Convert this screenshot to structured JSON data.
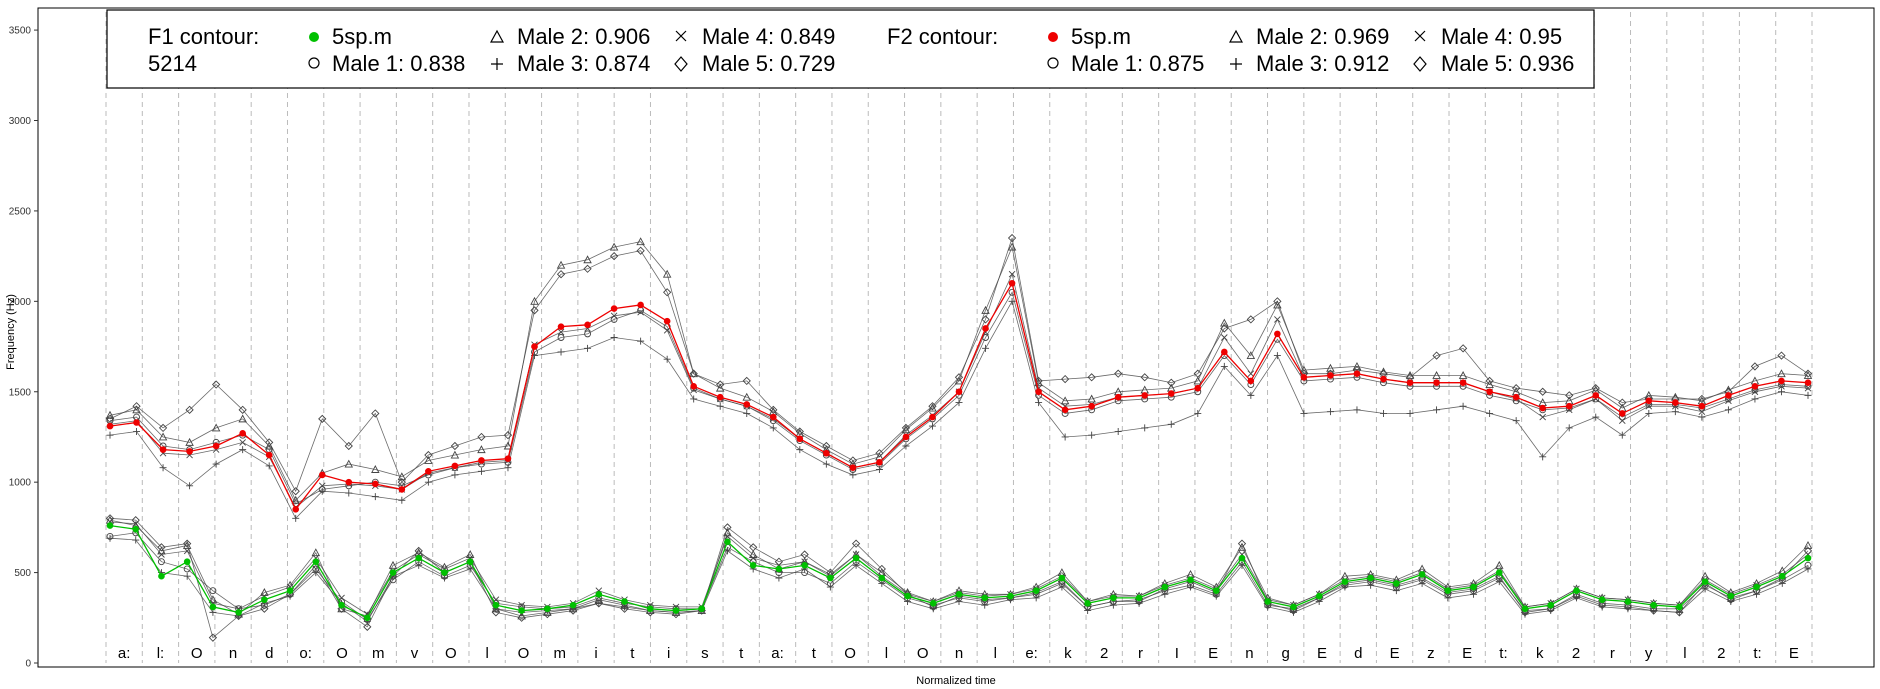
{
  "chart_data": {
    "type": "line",
    "title": "",
    "xlabel": "Normalized time",
    "ylabel": "Frequency (Hz)",
    "ylim": [
      0,
      3600
    ],
    "yticks": [
      0,
      500,
      1000,
      1500,
      2000,
      2500,
      3000,
      3500
    ],
    "segments": [
      "a:",
      "l:",
      "O",
      "n",
      "d",
      "o:",
      "O",
      "m",
      "v",
      "O",
      "l",
      "O",
      "m",
      "i",
      "t",
      "i",
      "s",
      "t",
      "a:",
      "t",
      "O",
      "l",
      "O",
      "n",
      "l",
      "e:",
      "k",
      "2",
      "r",
      "I",
      "E",
      "n",
      "g",
      "E",
      "d",
      "E",
      "z",
      "E",
      "t:",
      "k",
      "2",
      "r",
      "y",
      "l",
      "2",
      "t:",
      "E"
    ],
    "grid": "vertical dashed segment boundaries",
    "legend": {
      "position": "top-left inside plot",
      "f1_title": "F1 contour:",
      "f1_id": "5214",
      "f1_ref": "5sp.m",
      "f1_male1": "Male 1: 0.838",
      "f1_male2": "Male 2: 0.906",
      "f1_male3": "Male 3: 0.874",
      "f1_male4": "Male 4: 0.849",
      "f1_male5": "Male 5: 0.729",
      "f2_title": "F2 contour:",
      "f2_ref": "5sp.m",
      "f2_male1": "Male 1: 0.875",
      "f2_male2": "Male 2: 0.969",
      "f2_male3": "Male 3: 0.912",
      "f2_male4": "Male 4: 0.95",
      "f2_male5": "Male 5: 0.936"
    },
    "colors": {
      "f1_ref": "#00c000",
      "f2_ref": "#ee0000",
      "speakers": "#444444",
      "grid": "#bbbbbb"
    },
    "series": [
      {
        "name": "5sp.m",
        "formant": "F1",
        "color": "#00c000",
        "marker": "filled-circle",
        "values": [
          760,
          740,
          480,
          560,
          310,
          280,
          350,
          400,
          560,
          320,
          250,
          500,
          580,
          500,
          560,
          320,
          290,
          300,
          320,
          380,
          340,
          300,
          290,
          300,
          670,
          540,
          520,
          540,
          470,
          580,
          470,
          370,
          330,
          380,
          360,
          370,
          400,
          470,
          330,
          360,
          360,
          420,
          460,
          400,
          580,
          340,
          310,
          370,
          450,
          470,
          440,
          490,
          400,
          420,
          500,
          300,
          320,
          400,
          350,
          340,
          320,
          310,
          450,
          370,
          420,
          480,
          580
        ]
      },
      {
        "name": "Male 1",
        "formant": "F1",
        "values": [
          700,
          720,
          560,
          520,
          400,
          300,
          320,
          380,
          520,
          340,
          240,
          460,
          560,
          480,
          540,
          330,
          310,
          300,
          310,
          360,
          330,
          310,
          300,
          300,
          640,
          560,
          500,
          500,
          440,
          560,
          460,
          360,
          320,
          360,
          340,
          360,
          380,
          440,
          310,
          340,
          350,
          400,
          430,
          380,
          560,
          320,
          300,
          360,
          430,
          450,
          420,
          460,
          380,
          400,
          470,
          290,
          300,
          380,
          330,
          320,
          300,
          300,
          430,
          360,
          400,
          460,
          540
        ]
      },
      {
        "name": "Male 2",
        "formant": "F1",
        "values": [
          790,
          760,
          620,
          650,
          350,
          270,
          390,
          430,
          610,
          300,
          260,
          540,
          610,
          530,
          600,
          300,
          260,
          280,
          300,
          350,
          320,
          290,
          280,
          290,
          720,
          600,
          520,
          560,
          490,
          600,
          500,
          390,
          340,
          400,
          380,
          380,
          420,
          500,
          340,
          380,
          370,
          440,
          490,
          420,
          640,
          360,
          320,
          380,
          480,
          490,
          460,
          520,
          420,
          440,
          540,
          310,
          330,
          410,
          360,
          350,
          330,
          320,
          480,
          390,
          440,
          510,
          650
        ]
      },
      {
        "name": "Male 3",
        "formant": "F1",
        "values": [
          690,
          680,
          500,
          480,
          280,
          260,
          330,
          370,
          500,
          330,
          230,
          480,
          540,
          470,
          520,
          300,
          280,
          290,
          300,
          330,
          310,
          290,
          280,
          290,
          620,
          520,
          470,
          520,
          420,
          540,
          440,
          340,
          300,
          340,
          320,
          350,
          360,
          420,
          290,
          320,
          330,
          380,
          420,
          370,
          540,
          310,
          280,
          340,
          420,
          430,
          400,
          440,
          360,
          380,
          450,
          270,
          290,
          360,
          310,
          300,
          290,
          280,
          410,
          340,
          380,
          440,
          520
        ]
      },
      {
        "name": "Male 4",
        "formant": "F1",
        "values": [
          780,
          770,
          600,
          620,
          330,
          300,
          370,
          420,
          580,
          360,
          270,
          510,
          600,
          520,
          580,
          350,
          320,
          310,
          330,
          400,
          350,
          320,
          310,
          310,
          700,
          580,
          540,
          560,
          480,
          600,
          480,
          380,
          340,
          390,
          370,
          380,
          410,
          480,
          340,
          370,
          370,
          430,
          470,
          410,
          600,
          350,
          320,
          380,
          460,
          480,
          450,
          500,
          410,
          430,
          510,
          310,
          330,
          410,
          360,
          350,
          330,
          320,
          460,
          380,
          430,
          490,
          600
        ]
      },
      {
        "name": "Male 5",
        "formant": "F1",
        "values": [
          800,
          790,
          640,
          660,
          140,
          260,
          300,
          380,
          540,
          300,
          200,
          480,
          620,
          500,
          560,
          280,
          250,
          270,
          290,
          330,
          300,
          280,
          270,
          290,
          750,
          640,
          560,
          600,
          500,
          660,
          520,
          380,
          310,
          370,
          350,
          360,
          390,
          450,
          310,
          340,
          340,
          410,
          450,
          390,
          660,
          330,
          290,
          360,
          440,
          460,
          430,
          470,
          390,
          410,
          480,
          280,
          300,
          370,
          320,
          310,
          290,
          280,
          440,
          350,
          400,
          470,
          620
        ]
      },
      {
        "name": "5sp.m",
        "formant": "F2",
        "color": "#ee0000",
        "marker": "filled-circle",
        "values": [
          1310,
          1330,
          1180,
          1170,
          1200,
          1270,
          1150,
          850,
          1040,
          1000,
          990,
          960,
          1060,
          1090,
          1120,
          1130,
          1750,
          1860,
          1870,
          1960,
          1980,
          1890,
          1530,
          1470,
          1430,
          1360,
          1240,
          1160,
          1080,
          1110,
          1250,
          1360,
          1500,
          1850,
          2100,
          1500,
          1400,
          1420,
          1470,
          1480,
          1490,
          1520,
          1720,
          1560,
          1820,
          1580,
          1590,
          1600,
          1570,
          1550,
          1550,
          1550,
          1500,
          1470,
          1410,
          1420,
          1480,
          1380,
          1450,
          1440,
          1420,
          1480,
          1530,
          1560,
          1550
        ]
      },
      {
        "name": "Male 1",
        "formant": "F2",
        "values": [
          1340,
          1360,
          1200,
          1180,
          1220,
          1260,
          1180,
          880,
          960,
          980,
          1000,
          980,
          1040,
          1080,
          1100,
          1110,
          1720,
          1800,
          1820,
          1900,
          1950,
          1860,
          1520,
          1460,
          1420,
          1340,
          1230,
          1150,
          1070,
          1100,
          1240,
          1350,
          1480,
          1800,
          2050,
          1480,
          1380,
          1400,
          1450,
          1460,
          1470,
          1500,
          1700,
          1540,
          1790,
          1560,
          1570,
          1580,
          1550,
          1530,
          1530,
          1530,
          1480,
          1450,
          1400,
          1410,
          1460,
          1360,
          1430,
          1430,
          1410,
          1460,
          1510,
          1540,
          1530
        ]
      },
      {
        "name": "Male 2",
        "formant": "F2",
        "values": [
          1370,
          1400,
          1250,
          1220,
          1300,
          1350,
          1200,
          900,
          1050,
          1100,
          1070,
          1030,
          1120,
          1150,
          1180,
          1200,
          2000,
          2200,
          2230,
          2300,
          2330,
          2150,
          1600,
          1520,
          1470,
          1390,
          1270,
          1180,
          1100,
          1140,
          1290,
          1410,
          1560,
          1950,
          2300,
          1550,
          1450,
          1460,
          1500,
          1510,
          1520,
          1560,
          1880,
          1700,
          1980,
          1620,
          1630,
          1640,
          1610,
          1590,
          1590,
          1590,
          1540,
          1500,
          1440,
          1450,
          1510,
          1410,
          1480,
          1470,
          1450,
          1510,
          1560,
          1600,
          1590
        ]
      },
      {
        "name": "Male 3",
        "formant": "F2",
        "values": [
          1260,
          1280,
          1080,
          980,
          1100,
          1180,
          1090,
          800,
          950,
          940,
          920,
          900,
          1000,
          1040,
          1060,
          1080,
          1700,
          1720,
          1740,
          1800,
          1780,
          1680,
          1460,
          1420,
          1380,
          1300,
          1180,
          1100,
          1040,
          1070,
          1200,
          1310,
          1440,
          1740,
          2000,
          1440,
          1250,
          1260,
          1280,
          1300,
          1320,
          1380,
          1640,
          1480,
          1700,
          1380,
          1390,
          1400,
          1380,
          1380,
          1400,
          1420,
          1380,
          1340,
          1140,
          1300,
          1360,
          1260,
          1380,
          1390,
          1360,
          1400,
          1460,
          1500,
          1480
        ]
      },
      {
        "name": "Male 4",
        "formant": "F2",
        "values": [
          1320,
          1340,
          1160,
          1150,
          1180,
          1220,
          1140,
          860,
          980,
          990,
          980,
          960,
          1050,
          1080,
          1110,
          1120,
          1760,
          1830,
          1850,
          1920,
          1940,
          1840,
          1510,
          1460,
          1420,
          1350,
          1240,
          1160,
          1080,
          1110,
          1260,
          1370,
          1500,
          1830,
          2150,
          1520,
          1420,
          1430,
          1470,
          1480,
          1490,
          1520,
          1800,
          1600,
          1900,
          1580,
          1590,
          1600,
          1570,
          1550,
          1550,
          1550,
          1500,
          1460,
          1360,
          1400,
          1460,
          1340,
          1420,
          1420,
          1390,
          1450,
          1500,
          1530,
          1520
        ]
      },
      {
        "name": "Male 5",
        "formant": "F2",
        "values": [
          1350,
          1420,
          1300,
          1400,
          1540,
          1400,
          1220,
          950,
          1350,
          1200,
          1380,
          1000,
          1150,
          1200,
          1250,
          1260,
          1950,
          2150,
          2180,
          2250,
          2280,
          2050,
          1600,
          1540,
          1560,
          1400,
          1280,
          1200,
          1120,
          1160,
          1300,
          1420,
          1580,
          1900,
          2350,
          1560,
          1570,
          1580,
          1600,
          1580,
          1550,
          1600,
          1850,
          1900,
          2000,
          1600,
          1600,
          1620,
          1600,
          1580,
          1700,
          1740,
          1560,
          1520,
          1500,
          1480,
          1520,
          1440,
          1460,
          1460,
          1460,
          1500,
          1640,
          1700,
          1600
        ]
      }
    ]
  }
}
